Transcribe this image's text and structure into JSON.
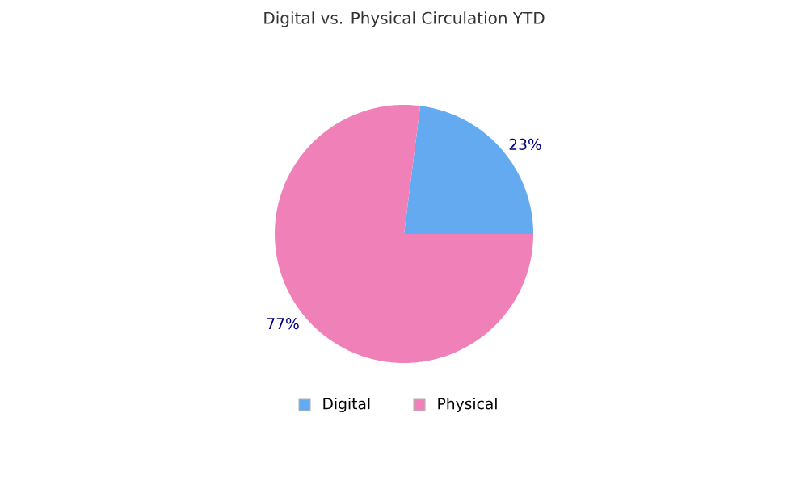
{
  "chart_data": {
    "type": "pie",
    "title": "Digital vs. Physical Circulation YTD",
    "categories": [
      "Digital",
      "Physical"
    ],
    "values": [
      23,
      77
    ],
    "colors": [
      "#64aaf0",
      "#f080b8"
    ],
    "value_labels": [
      "23%",
      "77%"
    ],
    "legend": "bottom"
  }
}
